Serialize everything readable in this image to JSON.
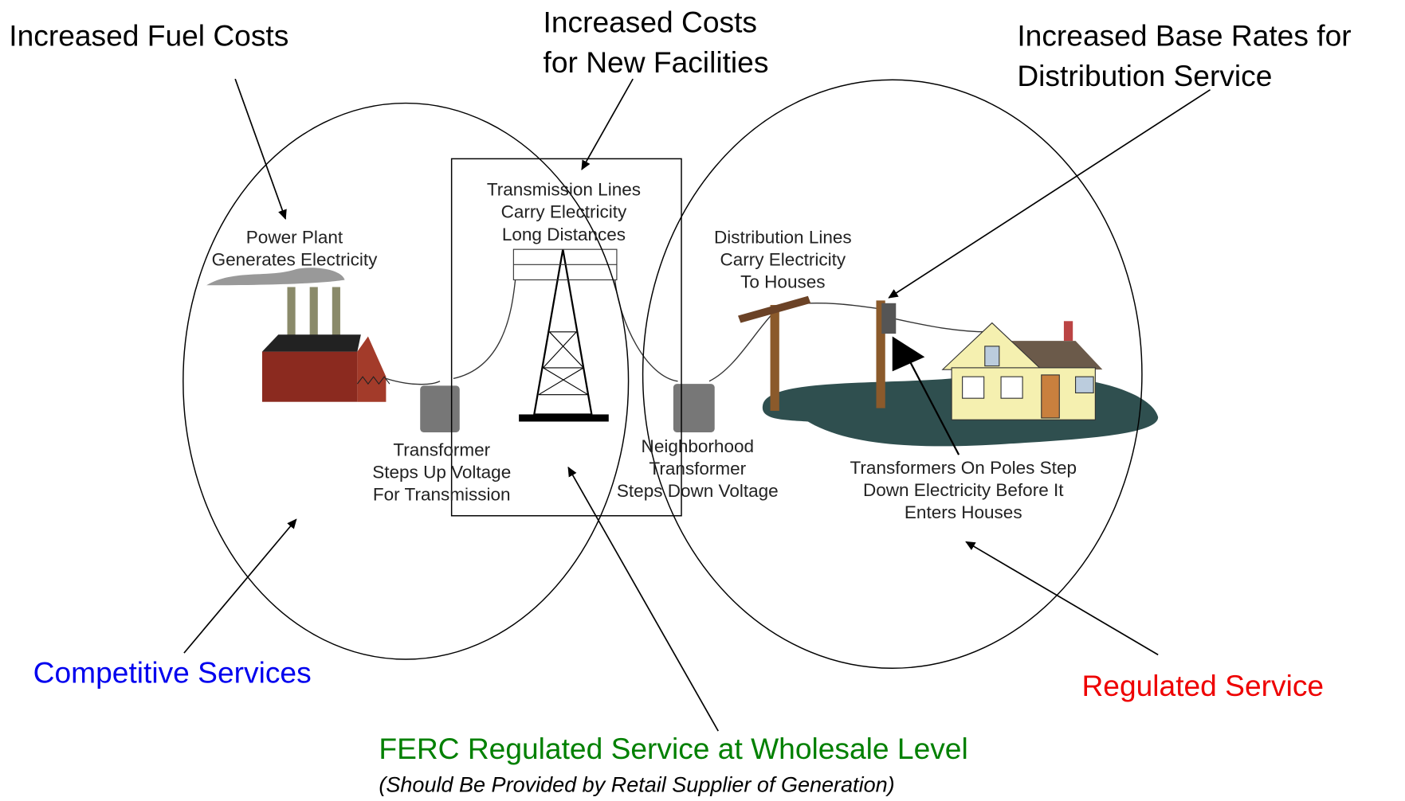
{
  "callouts": {
    "fuel": [
      "Increased Fuel Costs"
    ],
    "facilities": [
      "Increased Costs",
      "for New Facilities"
    ],
    "base_rates": [
      "Increased Base Rates for",
      "Distribution Service"
    ],
    "competitive": "Competitive Services",
    "regulated": "Regulated Service",
    "ferc": "FERC Regulated Service at Wholesale Level",
    "ferc_note": "(Should Be Provided by Retail Supplier of Generation)"
  },
  "components": {
    "power_plant": [
      "Power Plant",
      "Generates Electricity"
    ],
    "transmission": [
      "Transmission Lines",
      "Carry Electricity",
      "Long Distances"
    ],
    "distribution": [
      "Distribution Lines",
      "Carry Electricity",
      "To Houses"
    ],
    "step_up": [
      "Transformer",
      "Steps Up Voltage",
      "For Transmission"
    ],
    "neighborhood": [
      "Neighborhood",
      "Transformer",
      "Steps Down Voltage"
    ],
    "pole": [
      "Transformers On Poles Step",
      "Down Electricity Before It",
      "Enters Houses"
    ]
  }
}
